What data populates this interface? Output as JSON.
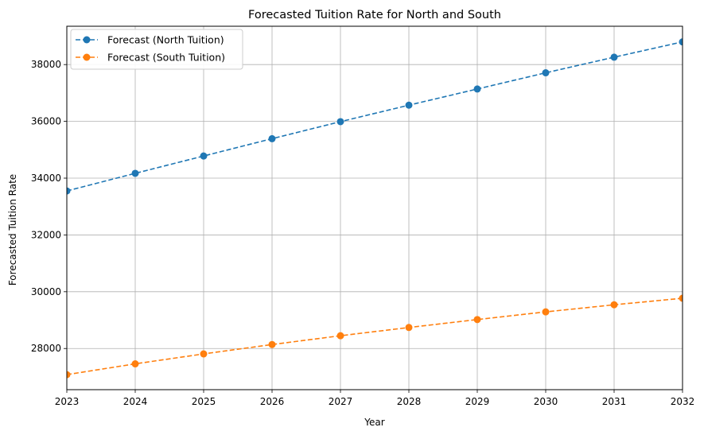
{
  "chart_data": {
    "type": "line",
    "title": "Forecasted Tuition Rate for North and South",
    "xlabel": "Year",
    "ylabel": "Forecasted Tuition Rate",
    "x": [
      2023,
      2024,
      2025,
      2026,
      2027,
      2028,
      2029,
      2030,
      2031,
      2032
    ],
    "xlim": [
      2023,
      2032
    ],
    "ylim": [
      26550,
      39350
    ],
    "xticks": [
      "2023",
      "2024",
      "2025",
      "2026",
      "2027",
      "2028",
      "2029",
      "2030",
      "2031",
      "2032"
    ],
    "yticks": [
      "28000",
      "30000",
      "32000",
      "34000",
      "36000",
      "38000"
    ],
    "grid": true,
    "legend_position": "top-left",
    "series": [
      {
        "name": "Forecast (North Tuition)",
        "color": "#1f77b4",
        "linestyle": "dashed",
        "marker": "circle",
        "values": [
          33550,
          34170,
          34780,
          35390,
          35990,
          36570,
          37140,
          37710,
          38260,
          38800
        ]
      },
      {
        "name": "Forecast (South Tuition)",
        "color": "#ff7f0e",
        "linestyle": "dashed",
        "marker": "circle",
        "values": [
          27080,
          27460,
          27810,
          28140,
          28450,
          28740,
          29020,
          29290,
          29540,
          29770
        ]
      }
    ]
  }
}
